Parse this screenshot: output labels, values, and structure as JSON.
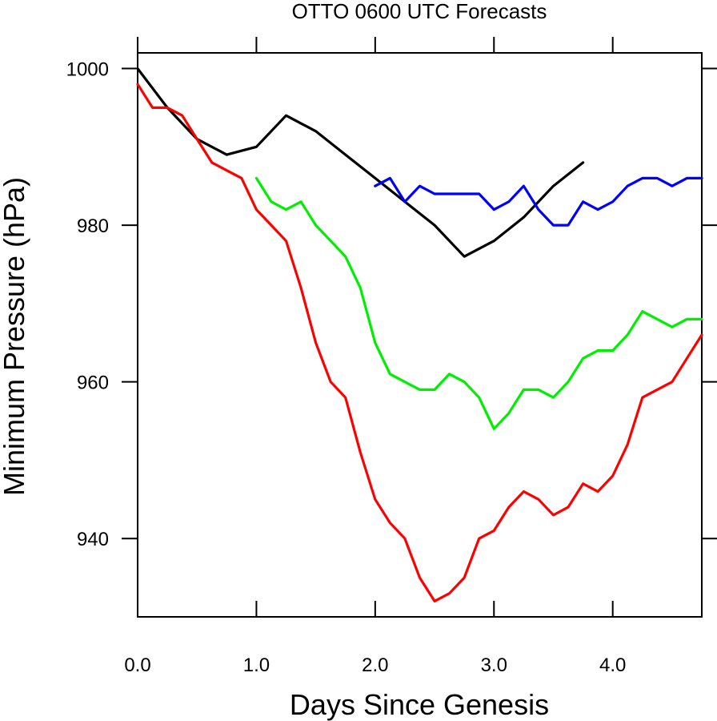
{
  "chart_data": {
    "type": "line",
    "title": "OTTO 0600 UTC Forecasts",
    "xlabel": "Days Since Genesis",
    "ylabel": "Minimum Pressure (hPa)",
    "xlim": [
      0,
      4.75
    ],
    "ylim": [
      930,
      1002
    ],
    "x_ticks": [
      {
        "value": 0,
        "label": "0.0"
      },
      {
        "value": 1,
        "label": "1.0"
      },
      {
        "value": 2,
        "label": "2.0"
      },
      {
        "value": 3,
        "label": "3.0"
      },
      {
        "value": 4,
        "label": "4.0"
      }
    ],
    "y_ticks": [
      {
        "value": 940,
        "label": "940"
      },
      {
        "value": 960,
        "label": "960"
      },
      {
        "value": 980,
        "label": "980"
      },
      {
        "value": 1000,
        "label": "1000"
      }
    ],
    "grid": false,
    "legend": "none",
    "series": [
      {
        "color": "#000000",
        "x": [
          0,
          0.25,
          0.5,
          0.75,
          1.0,
          1.25,
          1.5,
          1.75,
          2.0,
          2.25,
          2.5,
          2.75,
          3.0,
          3.25,
          3.5,
          3.75
        ],
        "y": [
          1000,
          995,
          991,
          989,
          990,
          994,
          992,
          989,
          986,
          983,
          980,
          976,
          978,
          981,
          985,
          988
        ]
      },
      {
        "color": "#ff0000",
        "x": [
          0,
          0.125,
          0.25,
          0.375,
          0.5,
          0.625,
          0.75,
          0.875,
          1.0,
          1.125,
          1.25,
          1.375,
          1.5,
          1.625,
          1.75,
          1.875,
          2.0,
          2.125,
          2.25,
          2.375,
          2.5,
          2.625,
          2.75,
          2.875,
          3.0,
          3.125,
          3.25,
          3.375,
          3.5,
          3.625,
          3.75,
          3.875,
          4.0,
          4.125,
          4.25,
          4.375,
          4.5,
          4.625,
          4.75
        ],
        "y": [
          998,
          995,
          995,
          994,
          991,
          988,
          987,
          986,
          982,
          980,
          978,
          972,
          965,
          960,
          958,
          951,
          945,
          942,
          940,
          935,
          932,
          933,
          935,
          940,
          941,
          944,
          946,
          945,
          943,
          944,
          947,
          946,
          948,
          952,
          958,
          959,
          960,
          963,
          966
        ]
      },
      {
        "color": "#00ee00",
        "x": [
          1.0,
          1.125,
          1.25,
          1.375,
          1.5,
          1.625,
          1.75,
          1.875,
          2.0,
          2.125,
          2.25,
          2.375,
          2.5,
          2.625,
          2.75,
          2.875,
          3.0,
          3.125,
          3.25,
          3.375,
          3.5,
          3.625,
          3.75,
          3.875,
          4.0,
          4.125,
          4.25,
          4.375,
          4.5,
          4.625,
          4.75
        ],
        "y": [
          986,
          983,
          982,
          983,
          980,
          978,
          976,
          972,
          965,
          961,
          960,
          959,
          959,
          961,
          960,
          958,
          954,
          956,
          959,
          959,
          958,
          960,
          963,
          964,
          964,
          966,
          969,
          968,
          967,
          968,
          968
        ]
      },
      {
        "color": "#0000ff",
        "x": [
          2.0,
          2.125,
          2.25,
          2.375,
          2.5,
          2.625,
          2.75,
          2.875,
          3.0,
          3.125,
          3.25,
          3.375,
          3.5,
          3.625,
          3.75,
          3.875,
          4.0,
          4.125,
          4.25,
          4.375,
          4.5,
          4.625,
          4.75
        ],
        "y": [
          985,
          986,
          983,
          985,
          984,
          984,
          984,
          984,
          982,
          983,
          985,
          982,
          980,
          980,
          983,
          982,
          983,
          985,
          986,
          986,
          985,
          986,
          986
        ]
      }
    ]
  }
}
